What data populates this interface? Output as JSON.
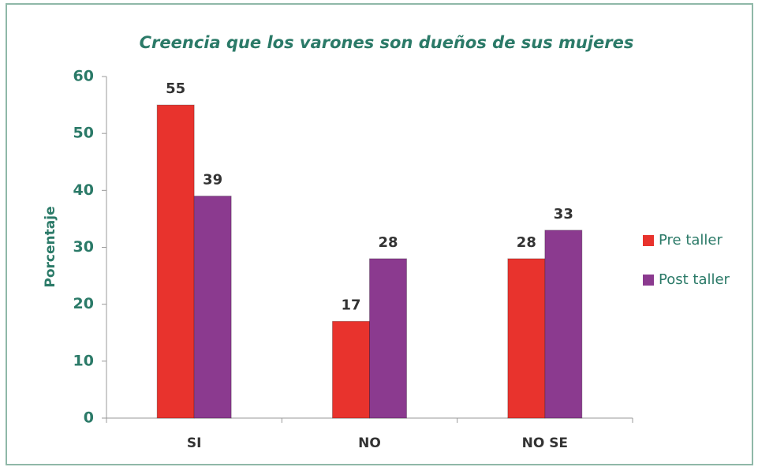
{
  "chart_data": {
    "type": "bar",
    "title": "Creencia que los varones son dueños de sus mujeres",
    "ylabel": "Porcentaje",
    "categories": [
      "SI",
      "NO",
      "NO SE"
    ],
    "series": [
      {
        "name": "Pre taller",
        "color": "#e8332d",
        "values": [
          55,
          17,
          28
        ]
      },
      {
        "name": "Post taller",
        "color": "#8b3a8f",
        "values": [
          39,
          28,
          33
        ]
      }
    ],
    "ylim": [
      0,
      60
    ],
    "yticks": [
      0,
      10,
      20,
      30,
      40,
      50,
      60
    ],
    "legend": "right"
  }
}
